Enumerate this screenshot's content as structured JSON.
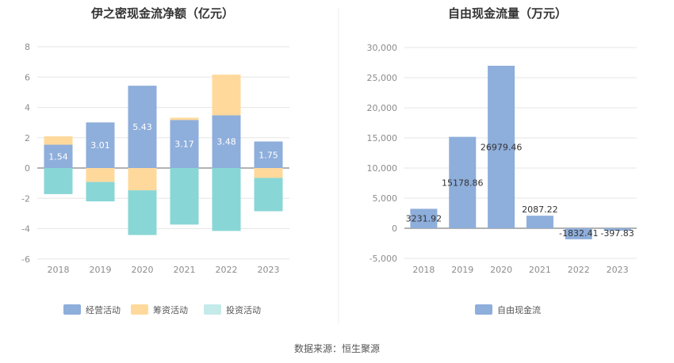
{
  "source_label": "数据来源：恒生聚源",
  "chart_data": [
    {
      "type": "bar",
      "stacked": true,
      "title": "伊之密现金流净额（亿元）",
      "categories": [
        "2018",
        "2019",
        "2020",
        "2021",
        "2022",
        "2023"
      ],
      "ylim": [
        -6,
        8
      ],
      "yticks": [
        8,
        6,
        4,
        2,
        0,
        -2,
        -4,
        -6
      ],
      "grid": true,
      "legend_position": "bottom",
      "series": [
        {
          "name": "经营活动",
          "color": "#8eaedb",
          "values": [
            1.54,
            3.01,
            5.43,
            3.17,
            3.48,
            1.75
          ],
          "labels": [
            "1.54",
            "3.01",
            "5.43",
            "3.17",
            "3.48",
            "1.75"
          ]
        },
        {
          "name": "筹资活动",
          "color": "#ffd99b",
          "values": [
            0.55,
            -0.92,
            -1.47,
            0.15,
            2.68,
            -0.65
          ]
        },
        {
          "name": "投资活动",
          "color": "#89d6d6",
          "legend_color": "#c5eaea",
          "values": [
            -1.72,
            -1.28,
            -2.95,
            -3.73,
            -4.15,
            -2.2
          ]
        }
      ]
    },
    {
      "type": "bar",
      "title": "自由现金流量（万元）",
      "categories": [
        "2018",
        "2019",
        "2020",
        "2021",
        "2022",
        "2023"
      ],
      "ylim": [
        -5000,
        30000
      ],
      "yticks": [
        "30,000",
        "25,000",
        "20,000",
        "15,000",
        "10,000",
        "5,000",
        "0",
        "-5,000"
      ],
      "yticks_values": [
        30000,
        25000,
        20000,
        15000,
        10000,
        5000,
        0,
        -5000
      ],
      "grid": true,
      "legend_position": "bottom",
      "series": [
        {
          "name": "自由现金流",
          "color": "#8eaedb",
          "values": [
            3231.92,
            15178.86,
            26979.46,
            2087.22,
            -1832.41,
            -397.83
          ],
          "labels": [
            "3231.92",
            "15178.86",
            "26979.46",
            "2087.22",
            "-1832.41",
            "-397.83"
          ]
        }
      ]
    }
  ]
}
